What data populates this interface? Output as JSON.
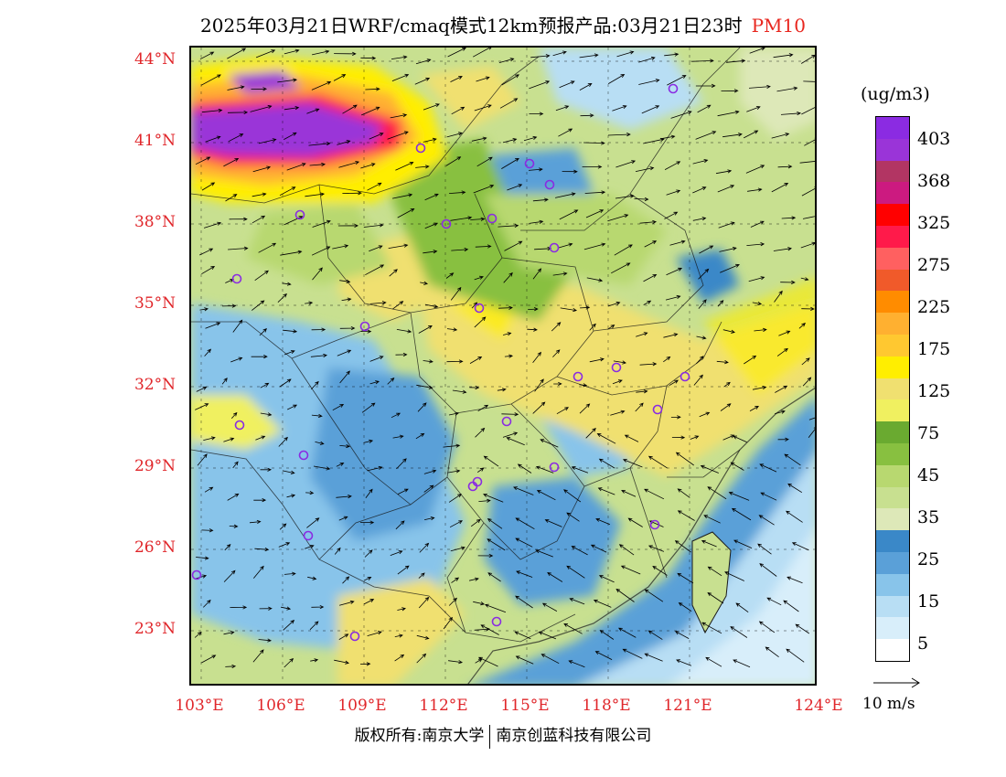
{
  "title": {
    "main": "2025年03月21日WRF/cmaq模式12km预报产品:03月21日23时",
    "pollutant": "PM10"
  },
  "lat_labels": [
    "44°N",
    "41°N",
    "38°N",
    "35°N",
    "32°N",
    "29°N",
    "26°N",
    "23°N"
  ],
  "lon_labels": [
    "103°E",
    "106°E",
    "109°E",
    "112°E",
    "115°E",
    "118°E",
    "121°E",
    "124°E"
  ],
  "colorbar": {
    "unit": "(ug/m3)",
    "colors": [
      "#8b2be2",
      "#9a34d8",
      "#b23563",
      "#cc1a80",
      "#ff0000",
      "#ff1a4a",
      "#ff6060",
      "#f05a2a",
      "#ff8c00",
      "#ffb030",
      "#ffc830",
      "#ffee00",
      "#f0e070",
      "#f0f060",
      "#6aaa30",
      "#88c040",
      "#b8d870",
      "#c8e090",
      "#dde8b8",
      "#3a88c8",
      "#5aa0d8",
      "#88c4ea",
      "#b8def4",
      "#d8eefa",
      "#ffffff"
    ],
    "labels": [
      "403",
      "368",
      "325",
      "275",
      "225",
      "175",
      "125",
      "75",
      "45",
      "35",
      "25",
      "15",
      "5"
    ]
  },
  "wind_reference": {
    "label": "10 m/s"
  },
  "copyright": {
    "left": "版权所有:南京大学",
    "right": "南京创蓝科技有限公司"
  },
  "city_markers_color": "#8a2be2",
  "axis_label_color": "#e0262a"
}
